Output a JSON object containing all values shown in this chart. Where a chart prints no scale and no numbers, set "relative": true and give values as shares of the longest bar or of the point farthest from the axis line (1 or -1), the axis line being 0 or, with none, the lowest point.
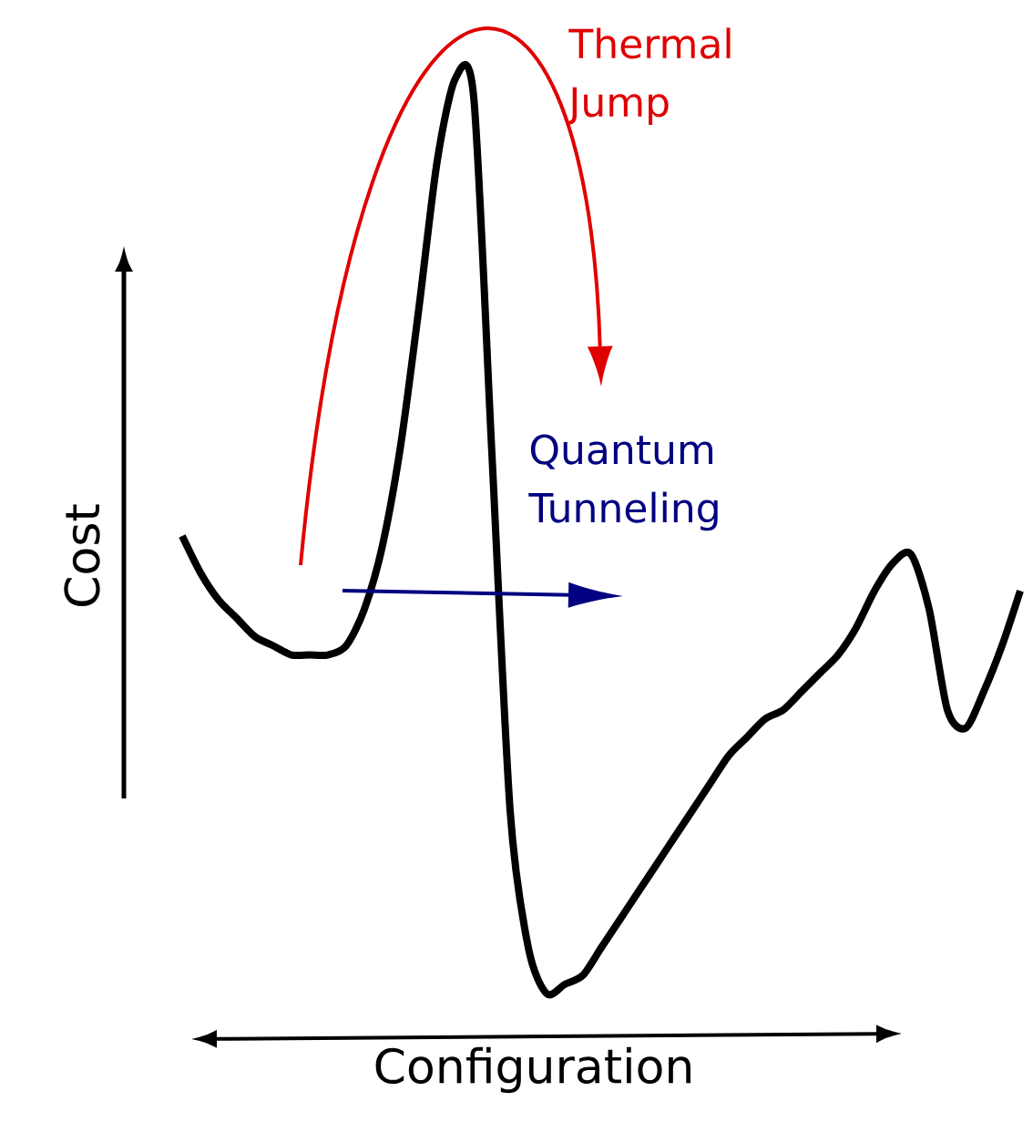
{
  "chart_data": {
    "type": "line",
    "relative": true,
    "xlabel": "Configuration",
    "ylabel": "Cost",
    "categories": [
      null,
      null,
      null,
      null,
      null,
      null,
      null,
      null,
      null,
      null,
      null,
      null,
      null,
      null,
      null,
      null,
      null,
      null,
      null,
      null,
      null,
      null,
      null,
      null,
      null,
      null,
      null,
      null,
      null,
      null,
      null,
      null,
      null,
      null,
      null,
      null,
      null,
      null,
      null,
      null,
      null,
      null,
      null,
      null,
      null,
      null,
      null
    ],
    "series": [
      {
        "color": "#000000",
        "values": [
          0.5,
          0.46,
          0.43,
          0.41,
          0.39,
          0.38,
          0.37,
          0.37,
          0.37,
          0.38,
          0.42,
          0.49,
          0.6,
          0.75,
          0.91,
          1.0,
          0.98,
          0.59,
          0.2,
          0.05,
          0.0,
          0.01,
          0.02,
          0.05,
          0.08,
          0.11,
          0.14,
          0.17,
          0.2,
          0.23,
          0.26,
          0.28,
          0.3,
          0.31,
          0.33,
          0.35,
          0.37,
          0.4,
          0.44,
          0.47,
          0.48,
          0.42,
          0.31,
          0.29,
          0.33,
          0.38,
          0.44
        ]
      }
    ],
    "annotations": [
      "Thermal Jump",
      "Quantum Tunneling"
    ]
  }
}
